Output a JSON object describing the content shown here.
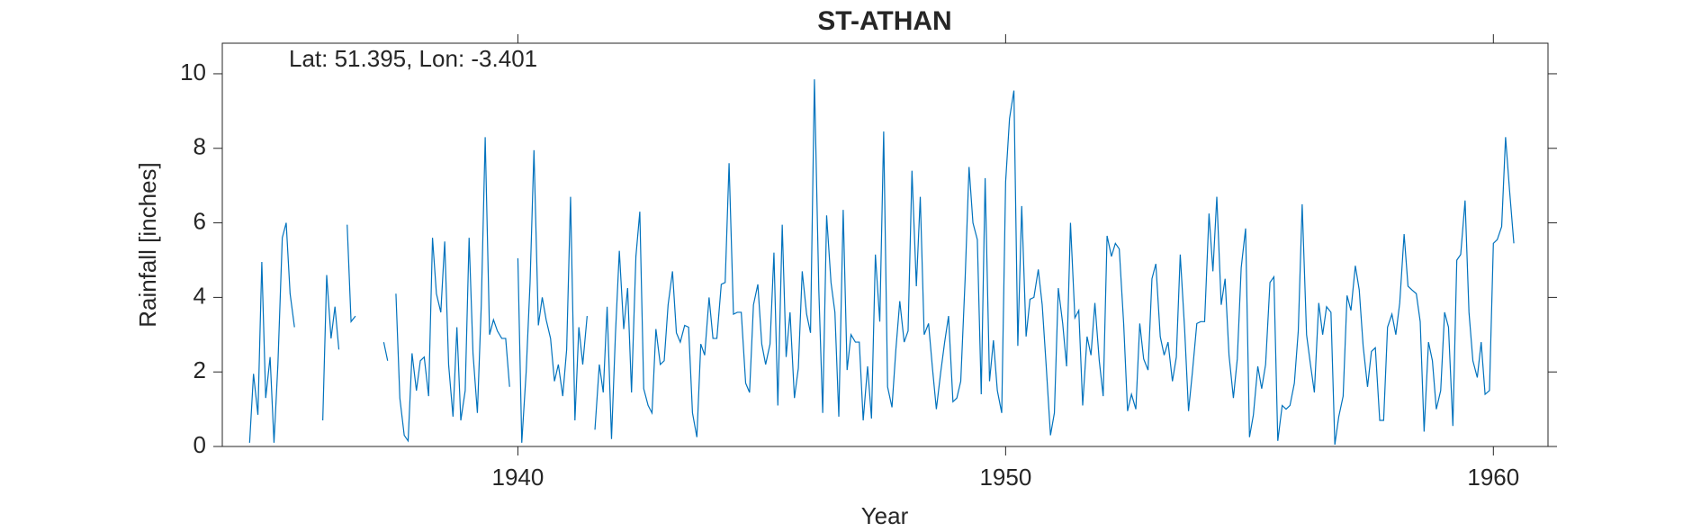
{
  "chart_data": {
    "type": "line",
    "title": "ST-ATHAN",
    "annotation": "Lat: 51.395, Lon: -3.401",
    "xlabel": "Year",
    "ylabel": "Rainfall [inches]",
    "color": "#0072bd",
    "xlim": [
      1933.94,
      1961.12
    ],
    "ylim": [
      0,
      10.82
    ],
    "xticks": [
      1940,
      1950,
      1960
    ],
    "yticks": [
      0,
      2,
      4,
      6,
      8,
      10
    ],
    "x": [
      1934.5,
      1934.58,
      1934.67,
      1934.75,
      1934.83,
      1934.92,
      1935,
      1935.08,
      1935.17,
      1935.25,
      1935.33,
      1935.42,
      1935.5,
      1935.58,
      1935.67,
      1935.75,
      1935.83,
      1935.92,
      1936,
      1936.08,
      1936.17,
      1936.25,
      1936.33,
      1936.42,
      1936.5,
      1936.58,
      1936.67,
      1936.75,
      1936.83,
      1936.92,
      1937,
      1937.08,
      1937.17,
      1937.25,
      1937.33,
      1937.42,
      1937.5,
      1937.58,
      1937.67,
      1937.75,
      1937.83,
      1937.92,
      1938,
      1938.08,
      1938.17,
      1938.25,
      1938.33,
      1938.42,
      1938.5,
      1938.58,
      1938.67,
      1938.75,
      1938.83,
      1938.92,
      1939,
      1939.08,
      1939.17,
      1939.25,
      1939.33,
      1939.42,
      1939.5,
      1939.58,
      1939.67,
      1939.75,
      1939.83,
      1939.92,
      1940,
      1940.08,
      1940.17,
      1940.25,
      1940.33,
      1940.42,
      1940.5,
      1940.58,
      1940.67,
      1940.75,
      1940.83,
      1940.92,
      1941,
      1941.08,
      1941.17,
      1941.25,
      1941.33,
      1941.42,
      1941.5,
      1941.58,
      1941.67,
      1941.75,
      1941.83,
      1941.92,
      1942,
      1942.08,
      1942.17,
      1942.25,
      1942.33,
      1942.42,
      1942.5,
      1942.58,
      1942.67,
      1942.75,
      1942.83,
      1942.92,
      1943,
      1943.08,
      1943.17,
      1943.25,
      1943.33,
      1943.42,
      1943.5,
      1943.58,
      1943.67,
      1943.75,
      1943.83,
      1943.92,
      1944,
      1944.08,
      1944.17,
      1944.25,
      1944.33,
      1944.42,
      1944.5,
      1944.58,
      1944.67,
      1944.75,
      1944.83,
      1944.92,
      1945,
      1945.08,
      1945.17,
      1945.25,
      1945.33,
      1945.42,
      1945.5,
      1945.58,
      1945.67,
      1945.75,
      1945.83,
      1945.92,
      1946,
      1946.08,
      1946.17,
      1946.25,
      1946.33,
      1946.42,
      1946.5,
      1946.58,
      1946.67,
      1946.75,
      1946.83,
      1946.92,
      1947,
      1947.08,
      1947.17,
      1947.25,
      1947.33,
      1947.42,
      1947.5,
      1947.58,
      1947.67,
      1947.75,
      1947.83,
      1947.92,
      1948,
      1948.08,
      1948.17,
      1948.25,
      1948.33,
      1948.42,
      1948.5,
      1948.58,
      1948.67,
      1948.75,
      1948.83,
      1948.92,
      1949,
      1949.08,
      1949.17,
      1949.25,
      1949.33,
      1949.42,
      1949.5,
      1949.58,
      1949.67,
      1949.75,
      1949.83,
      1949.92,
      1950,
      1950.08,
      1950.17,
      1950.25,
      1950.33,
      1950.42,
      1950.5,
      1950.58,
      1950.67,
      1950.75,
      1950.83,
      1950.92,
      1951,
      1951.08,
      1951.17,
      1951.25,
      1951.33,
      1951.42,
      1951.5,
      1951.58,
      1951.67,
      1951.75,
      1951.83,
      1951.92,
      1952,
      1952.08,
      1952.17,
      1952.25,
      1952.33,
      1952.42,
      1952.5,
      1952.58,
      1952.67,
      1952.75,
      1952.83,
      1952.92,
      1953,
      1953.08,
      1953.17,
      1953.25,
      1953.33,
      1953.42,
      1953.5,
      1953.58,
      1953.67,
      1953.75,
      1953.83,
      1953.92,
      1954,
      1954.08,
      1954.17,
      1954.25,
      1954.33,
      1954.42,
      1954.5,
      1954.58,
      1954.67,
      1954.75,
      1954.83,
      1954.92,
      1955,
      1955.08,
      1955.17,
      1955.25,
      1955.33,
      1955.42,
      1955.5,
      1955.58,
      1955.67,
      1955.75,
      1955.83,
      1955.92,
      1956,
      1956.08,
      1956.17,
      1956.25,
      1956.33,
      1956.42,
      1956.5,
      1956.58,
      1956.67,
      1956.75,
      1956.83,
      1956.92,
      1957,
      1957.08,
      1957.17,
      1957.25,
      1957.33,
      1957.42,
      1957.5,
      1957.58,
      1957.67,
      1957.75,
      1957.83,
      1957.92,
      1958,
      1958.08,
      1958.17,
      1958.25,
      1958.33,
      1958.42,
      1958.5,
      1958.58,
      1958.67,
      1958.75,
      1958.83,
      1958.92,
      1959,
      1959.08,
      1959.17,
      1959.25,
      1959.33,
      1959.42,
      1959.5,
      1959.58,
      1959.67,
      1959.75,
      1959.83,
      1959.92,
      1960,
      1960.08,
      1960.17,
      1960.25,
      1960.33,
      1960.42
    ],
    "values": [
      0.1,
      1.95,
      0.85,
      4.95,
      1.3,
      2.4,
      0.1,
      2.2,
      5.6,
      6.0,
      4.1,
      3.2,
      null,
      null,
      null,
      null,
      null,
      null,
      0.7,
      4.6,
      2.9,
      3.75,
      2.6,
      null,
      5.95,
      3.35,
      3.5,
      null,
      null,
      null,
      null,
      null,
      null,
      2.8,
      2.3,
      null,
      4.1,
      1.3,
      0.3,
      0.15,
      2.5,
      1.5,
      2.3,
      2.4,
      1.35,
      5.6,
      4.1,
      3.6,
      5.5,
      2.2,
      0.8,
      3.2,
      0.7,
      1.5,
      5.6,
      2.5,
      0.9,
      3.8,
      8.3,
      3.0,
      3.4,
      3.1,
      2.9,
      2.9,
      1.6,
      null,
      5.05,
      0.1,
      2.0,
      4.4,
      7.95,
      3.25,
      4.0,
      3.4,
      2.9,
      1.75,
      2.2,
      1.35,
      2.6,
      6.7,
      0.7,
      3.2,
      2.2,
      3.5,
      null,
      0.45,
      2.2,
      1.45,
      3.75,
      0.2,
      3.0,
      5.25,
      3.15,
      4.25,
      1.45,
      5.1,
      6.3,
      1.55,
      1.1,
      0.9,
      3.15,
      2.2,
      2.3,
      3.8,
      4.7,
      3.05,
      2.8,
      3.25,
      3.2,
      0.9,
      0.25,
      2.75,
      2.45,
      4.0,
      2.9,
      2.9,
      4.35,
      4.4,
      7.6,
      3.55,
      3.6,
      3.6,
      1.7,
      1.45,
      3.8,
      4.35,
      2.75,
      2.2,
      2.75,
      5.2,
      1.1,
      5.95,
      2.4,
      3.6,
      1.3,
      2.1,
      4.7,
      3.55,
      3.05,
      9.85,
      4.2,
      0.9,
      6.2,
      4.4,
      3.6,
      0.8,
      6.35,
      2.05,
      3.0,
      2.8,
      2.8,
      0.7,
      2.15,
      0.75,
      5.15,
      3.35,
      8.45,
      1.6,
      1.05,
      2.6,
      3.9,
      2.8,
      3.1,
      7.4,
      4.3,
      6.7,
      3.0,
      3.3,
      2.1,
      1.0,
      2.0,
      2.8,
      3.5,
      1.2,
      1.3,
      1.75,
      4.5,
      7.5,
      6.0,
      5.55,
      1.4,
      7.2,
      1.75,
      2.85,
      1.5,
      0.9,
      7.1,
      8.8,
      9.55,
      2.7,
      6.45,
      2.95,
      3.95,
      4.0,
      4.75,
      3.8,
      2.2,
      0.3,
      0.9,
      4.25,
      3.3,
      2.15,
      6.0,
      3.45,
      3.65,
      1.1,
      2.95,
      2.45,
      3.85,
      2.3,
      1.35,
      5.65,
      5.1,
      5.45,
      5.3,
      3.3,
      0.95,
      1.4,
      1.0,
      3.3,
      2.35,
      2.05,
      4.5,
      4.9,
      2.95,
      2.45,
      2.8,
      1.75,
      2.4,
      5.15,
      3.15,
      0.95,
      2.0,
      3.3,
      3.35,
      3.35,
      6.25,
      4.7,
      6.7,
      3.8,
      4.5,
      2.45,
      1.3,
      2.35,
      4.8,
      5.85,
      0.25,
      0.85,
      2.15,
      1.55,
      2.2,
      4.4,
      4.55,
      0.15,
      1.1,
      1.0,
      1.1,
      1.7,
      3.1,
      6.5,
      3.0,
      2.2,
      1.45,
      3.85,
      3.0,
      3.75,
      3.6,
      0.05,
      0.8,
      1.35,
      4.05,
      3.65,
      4.85,
      4.2,
      2.7,
      1.6,
      2.55,
      2.65,
      0.7,
      0.7,
      3.2,
      3.55,
      3.0,
      3.85,
      5.7,
      4.3,
      4.2,
      4.1,
      3.35,
      0.4,
      2.8,
      2.3,
      1.0,
      1.5,
      3.6,
      3.2,
      0.55,
      5.0,
      5.15,
      6.6,
      3.6,
      2.3,
      1.85,
      2.8,
      1.4,
      1.5,
      5.45,
      5.55,
      5.9,
      8.3,
      6.9,
      5.45
    ]
  }
}
